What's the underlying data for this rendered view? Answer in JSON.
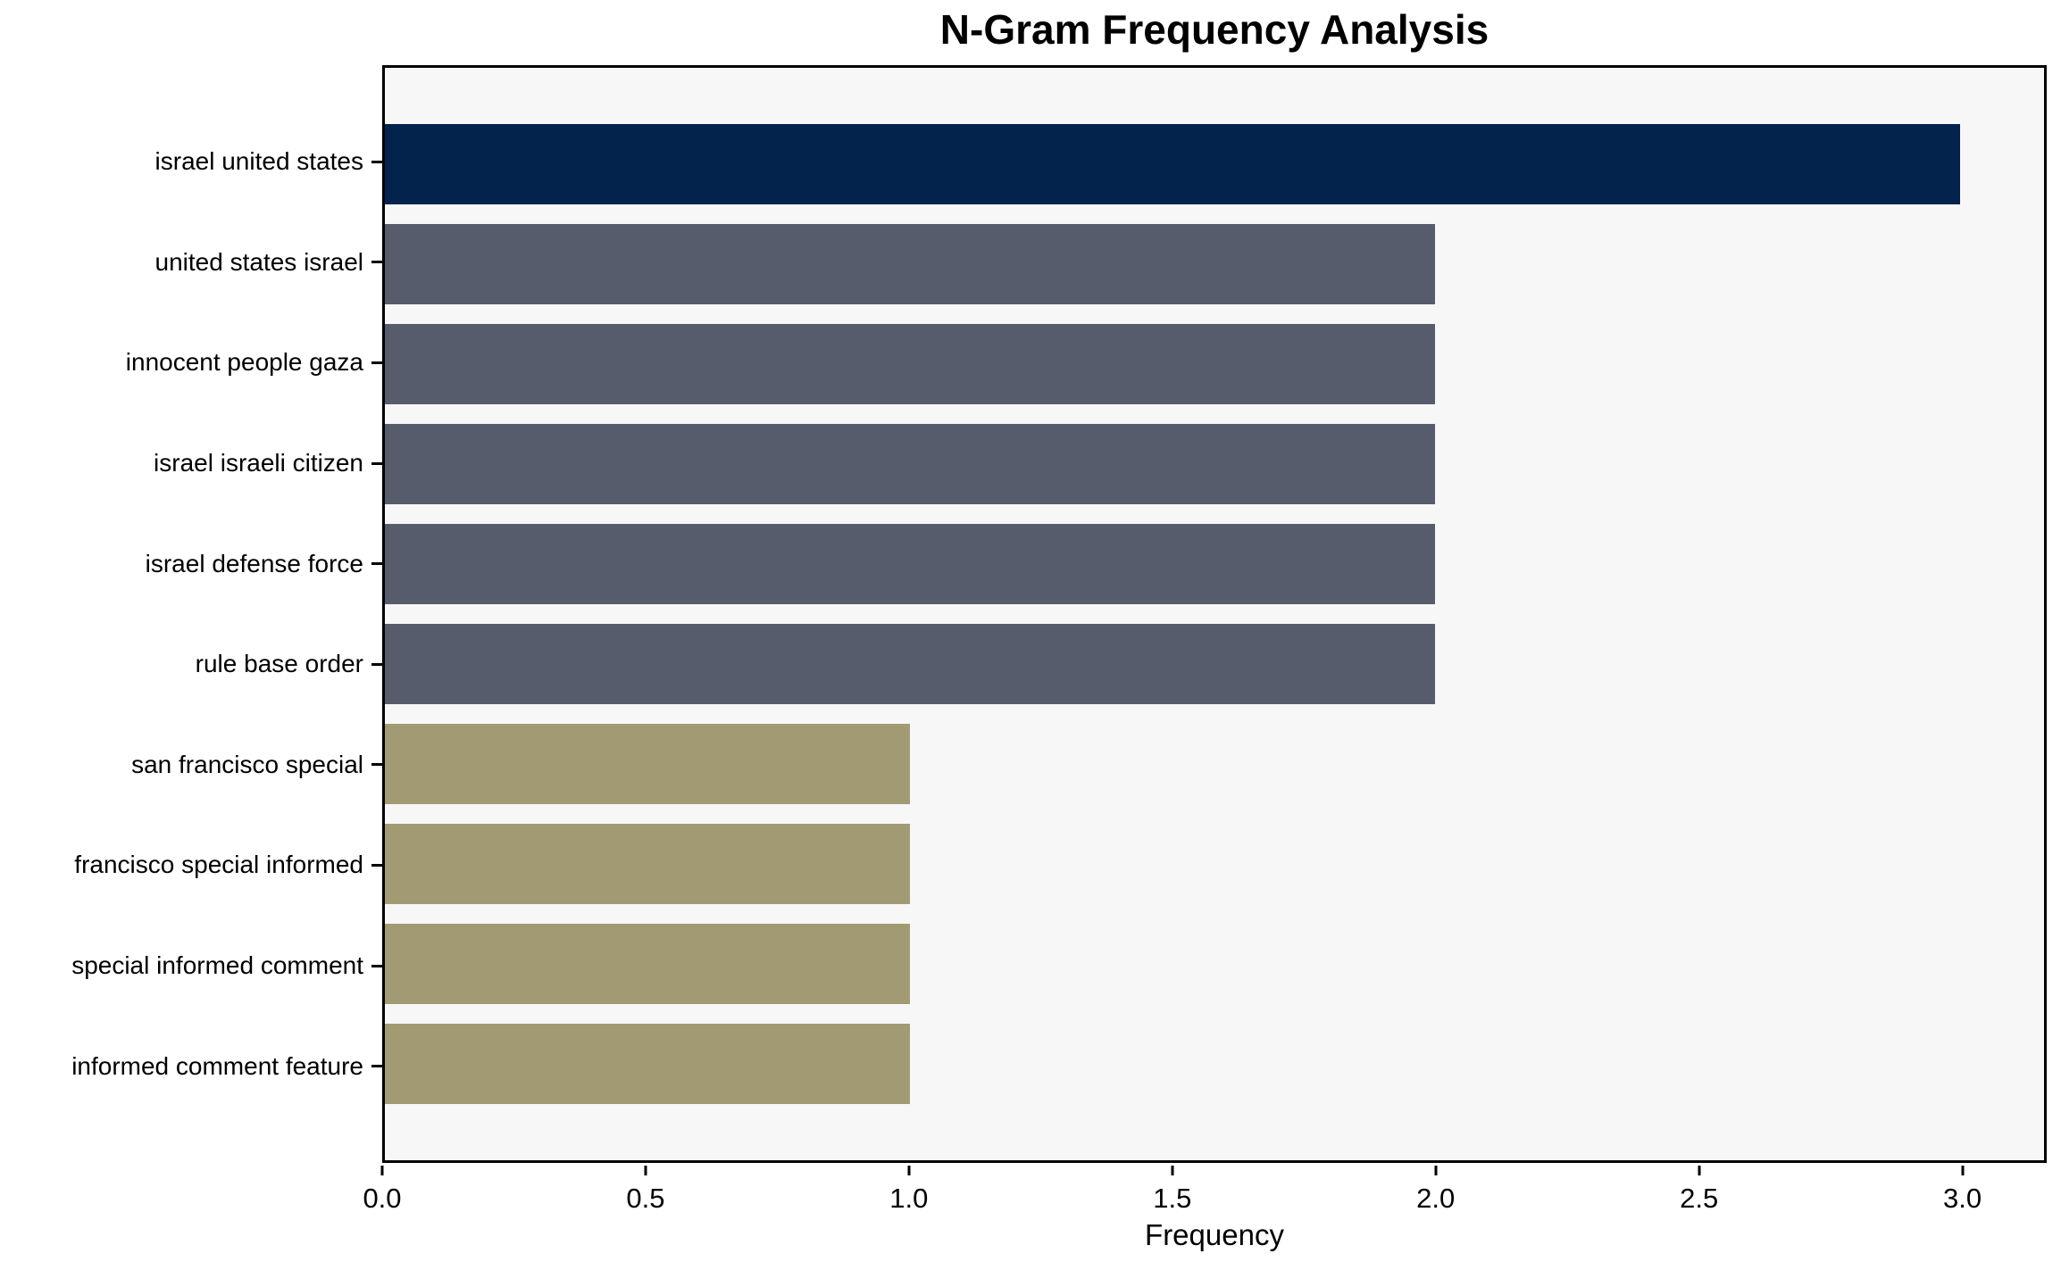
{
  "chart_data": {
    "type": "bar",
    "orientation": "horizontal",
    "title": "N-Gram Frequency Analysis",
    "xlabel": "Frequency",
    "ylabel": "",
    "categories": [
      "israel united states",
      "united states israel",
      "innocent people gaza",
      "israel israeli citizen",
      "israel defense force",
      "rule base order",
      "san francisco special",
      "francisco special informed",
      "special informed comment",
      "informed comment feature"
    ],
    "values": [
      3,
      2,
      2,
      2,
      2,
      2,
      1,
      1,
      1,
      1
    ],
    "bar_colors": [
      "#03234d",
      "#575c6d",
      "#575c6d",
      "#575c6d",
      "#575c6d",
      "#575c6d",
      "#a29a72",
      "#a29a72",
      "#a29a72",
      "#a29a72"
    ],
    "xlim": [
      0,
      3.16
    ],
    "xticks": [
      0.0,
      0.5,
      1.0,
      1.5,
      2.0,
      2.5,
      3.0
    ],
    "xtick_labels": [
      "0.0",
      "0.5",
      "1.0",
      "1.5",
      "2.0",
      "2.5",
      "3.0"
    ],
    "grid": false,
    "legend": "none",
    "plot_background": "#f7f7f7",
    "figure_background": "#ffffff",
    "axis_color": "#000000"
  }
}
